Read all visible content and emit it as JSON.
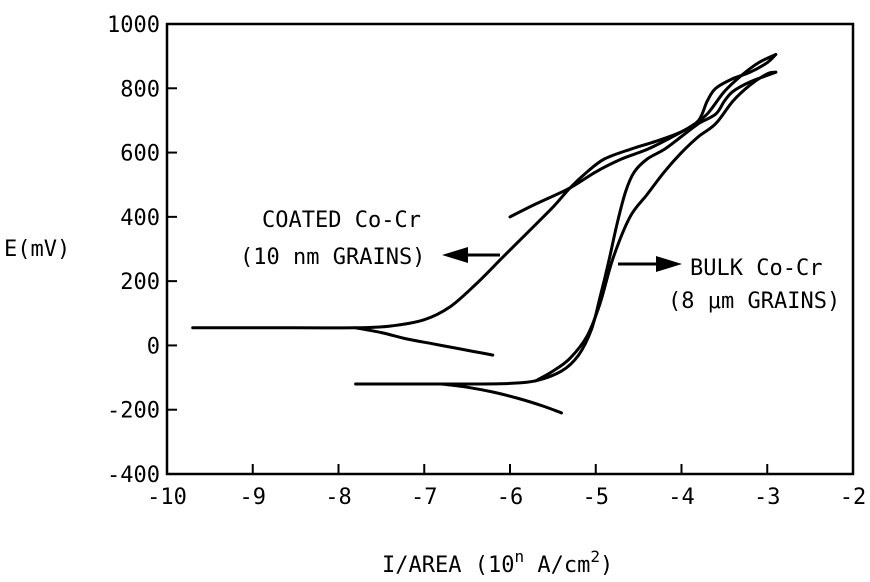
{
  "chart_data": {
    "type": "line",
    "xlabel": "I/AREA (10",
    "xlabel_exp": "n",
    "xlabel_unit": " A/cm",
    "xlabel_unit_exp": "2",
    "xlabel_close": ")",
    "ylabel": "E(mV)",
    "xlim": [
      -10,
      -2
    ],
    "ylim": [
      -400,
      1000
    ],
    "x_ticks": [
      -10,
      -9,
      -8,
      -7,
      -6,
      -5,
      -4,
      -3,
      -2
    ],
    "x_tick_labels": [
      "-10",
      "-9",
      "-8",
      "-7",
      "-6",
      "-5",
      "-4",
      "-3",
      "-2"
    ],
    "y_ticks": [
      1000,
      800,
      600,
      400,
      200,
      0,
      -200,
      -400
    ],
    "y_tick_labels": [
      "1000",
      "800",
      "600",
      "400",
      "200",
      "0",
      "-200",
      "-400"
    ],
    "grid": false,
    "annotations": [
      {
        "id": "coated",
        "lines": [
          "COATED Co-Cr",
          "(10 nm GRAINS)"
        ],
        "arrow": "left"
      },
      {
        "id": "bulk",
        "lines": [
          "BULK Co-Cr",
          "(8 μm GRAINS)"
        ],
        "arrow": "right"
      }
    ],
    "series": [
      {
        "id": "coated-forward",
        "x": [
          -9.7,
          -8.5,
          -7.8,
          -7.4,
          -7.0,
          -6.7,
          -6.4,
          -6.1,
          -5.8,
          -5.5,
          -5.3,
          -5.1,
          -4.9,
          -4.6,
          -4.3,
          -4.0,
          -3.8,
          -3.7,
          -3.6,
          -3.4,
          -3.2,
          -3.0,
          -2.9
        ],
        "y": [
          55,
          55,
          55,
          60,
          80,
          120,
          190,
          270,
          350,
          430,
          490,
          540,
          580,
          610,
          635,
          665,
          700,
          760,
          800,
          830,
          850,
          880,
          905
        ]
      },
      {
        "id": "coated-cathodic",
        "x": [
          -7.8,
          -7.5,
          -7.2,
          -6.9,
          -6.6,
          -6.4,
          -6.2
        ],
        "y": [
          55,
          40,
          20,
          5,
          -10,
          -20,
          -30
        ]
      },
      {
        "id": "coated-reverse",
        "x": [
          -2.9,
          -3.1,
          -3.3,
          -3.5,
          -3.7,
          -3.9,
          -4.1,
          -4.4,
          -4.7,
          -5.0,
          -5.3,
          -5.7,
          -6.0
        ],
        "y": [
          905,
          880,
          840,
          790,
          720,
          680,
          650,
          610,
          580,
          540,
          490,
          440,
          400
        ]
      },
      {
        "id": "bulk-forward",
        "x": [
          -7.8,
          -7.0,
          -6.5,
          -6.0,
          -5.7,
          -5.4,
          -5.2,
          -5.05,
          -4.95,
          -4.85,
          -4.75,
          -4.65,
          -4.55,
          -4.4,
          -4.2,
          -4.0,
          -3.8,
          -3.6,
          -3.5,
          -3.4,
          -3.2,
          -3.0,
          -2.9
        ],
        "y": [
          -120,
          -120,
          -120,
          -118,
          -110,
          -80,
          -30,
          50,
          150,
          260,
          380,
          480,
          540,
          580,
          610,
          650,
          690,
          720,
          760,
          790,
          820,
          840,
          850
        ]
      },
      {
        "id": "bulk-cathodic",
        "x": [
          -6.8,
          -6.5,
          -6.2,
          -5.9,
          -5.6,
          -5.4
        ],
        "y": [
          -120,
          -130,
          -145,
          -165,
          -190,
          -210
        ]
      },
      {
        "id": "bulk-reverse",
        "x": [
          -5.7,
          -5.5,
          -5.3,
          -5.1,
          -4.95,
          -4.8,
          -4.6,
          -4.4,
          -4.2,
          -4.0,
          -3.8,
          -3.6,
          -3.4,
          -3.2,
          -3.0,
          -2.9
        ],
        "y": [
          -110,
          -80,
          -40,
          30,
          130,
          270,
          400,
          470,
          540,
          600,
          650,
          690,
          760,
          810,
          845,
          850
        ]
      }
    ]
  }
}
